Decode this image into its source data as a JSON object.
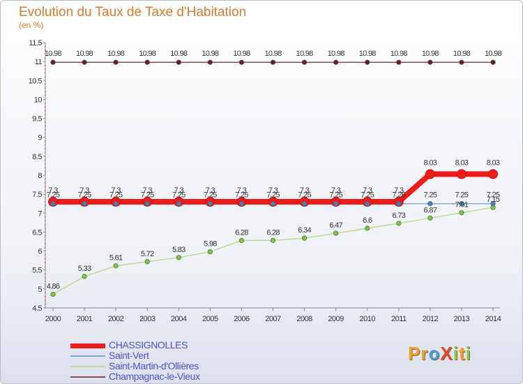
{
  "title": "Evolution du Taux de Taxe d'Habitation",
  "unit": "(en %)",
  "logo": {
    "text": "ProXiti",
    "letters": [
      "P",
      "r",
      "o",
      "X",
      "i",
      "t",
      "i"
    ],
    "colors": [
      "#f29f2a",
      "#f29f2a",
      "#4c9fd6",
      "#e8442e",
      "#8cc63f",
      "#f29f2a",
      "#8cc63f"
    ]
  },
  "chart_data": {
    "type": "line",
    "x": [
      "2000",
      "2001",
      "2002",
      "2003",
      "2004",
      "2005",
      "2006",
      "2007",
      "2008",
      "2009",
      "2010",
      "2011",
      "2012",
      "2013",
      "2014"
    ],
    "ylim": [
      4.5,
      11.5
    ],
    "yticks": [
      "4.5",
      "5",
      "5.5",
      "6",
      "6.5",
      "7",
      "7.5",
      "8",
      "8.5",
      "9",
      "9.5",
      "10",
      "10.5",
      "11",
      "11.5"
    ],
    "grid": false,
    "legend_position": "bottom",
    "series": [
      {
        "name": "CHASSIGNOLLES",
        "color": "#ee1c1c",
        "width": 8,
        "marker": "#ee1c1c",
        "values": [
          7.3,
          7.3,
          7.3,
          7.3,
          7.3,
          7.3,
          7.3,
          7.3,
          7.3,
          7.3,
          7.3,
          7.3,
          8.03,
          8.03,
          8.03
        ],
        "labels": [
          "7.3",
          "7.3",
          "7.3",
          "7.3",
          "7.3",
          "7.3",
          "7.3",
          "7.3",
          "7.3",
          "7.3",
          "7.3",
          "7.3",
          "8.03",
          "8.03",
          "8.03"
        ]
      },
      {
        "name": "Saint-Vert",
        "color": "#7baad4",
        "width": 1.5,
        "marker": "#3d84c6",
        "values": [
          7.25,
          7.25,
          7.25,
          7.25,
          7.25,
          7.25,
          7.25,
          7.25,
          7.25,
          7.25,
          7.25,
          7.25,
          7.25,
          7.25,
          7.25
        ],
        "labels": [
          "7.25",
          "7.25",
          "7.25",
          "7.25",
          "7.25",
          "7.25",
          "7.25",
          "7.25",
          "7.25",
          "7.25",
          "7.25",
          "7.25",
          "7.25",
          "7.25",
          "7.25"
        ]
      },
      {
        "name": "Saint-Martin-d'Ollières",
        "color": "#b8dd91",
        "width": 1.5,
        "marker": "#7cc43a",
        "values": [
          4.86,
          5.33,
          5.61,
          5.72,
          5.83,
          5.98,
          6.28,
          6.28,
          6.34,
          6.47,
          6.6,
          6.73,
          6.87,
          7.01,
          7.15
        ],
        "labels": [
          "4.86",
          "5.33",
          "5.61",
          "5.72",
          "5.83",
          "5.98",
          "6.28",
          "6.28",
          "6.34",
          "6.47",
          "6.6",
          "6.73",
          "6.87",
          "7.01",
          "7.15"
        ]
      },
      {
        "name": "Champagnac-le-Vieux",
        "color": "#8b4a4f",
        "width": 1.5,
        "marker": "#6b1f24",
        "values": [
          10.98,
          10.98,
          10.98,
          10.98,
          10.98,
          10.98,
          10.98,
          10.98,
          10.98,
          10.98,
          10.98,
          10.98,
          10.98,
          10.98,
          10.98
        ],
        "labels": [
          "10.98",
          "10.98",
          "10.98",
          "10.98",
          "10.98",
          "10.98",
          "10.98",
          "10.98",
          "10.98",
          "10.98",
          "10.98",
          "10.98",
          "10.98",
          "10.98",
          "10.98"
        ]
      }
    ]
  }
}
